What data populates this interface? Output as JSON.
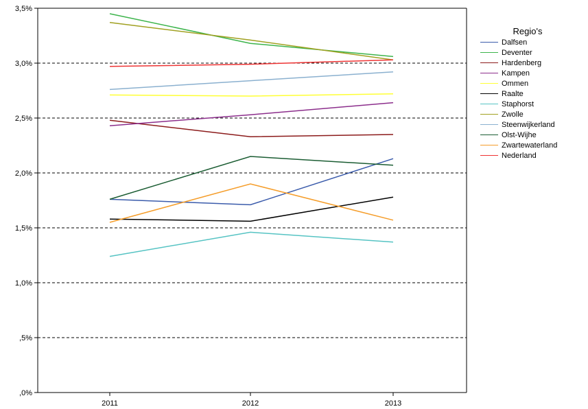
{
  "chart_data": {
    "type": "line",
    "title": "",
    "xlabel": "",
    "ylabel": "",
    "categories": [
      "2011",
      "2012",
      "2013"
    ],
    "ylim": [
      0,
      3.5
    ],
    "yticks": [
      0,
      0.5,
      1.0,
      1.5,
      2.0,
      2.5,
      3.0,
      3.5
    ],
    "ytick_labels": [
      ",0%",
      ",5%",
      "1,0%",
      "1,5%",
      "2,0%",
      "2,5%",
      "3,0%",
      "3,5%"
    ],
    "grid": "dashed horizontal",
    "legend": {
      "title": "Regio's",
      "position": "right"
    },
    "series": [
      {
        "name": "Dalfsen",
        "color": "#3a5bab",
        "values": [
          1.76,
          1.71,
          2.13
        ]
      },
      {
        "name": "Deventer",
        "color": "#3cb44b",
        "values": [
          3.45,
          3.18,
          3.06
        ]
      },
      {
        "name": "Hardenberg",
        "color": "#8b1a1a",
        "values": [
          2.48,
          2.33,
          2.35
        ]
      },
      {
        "name": "Kampen",
        "color": "#8b2d8b",
        "values": [
          2.43,
          2.53,
          2.64
        ]
      },
      {
        "name": "Ommen",
        "color": "#ffff33",
        "values": [
          2.71,
          2.7,
          2.72
        ]
      },
      {
        "name": "Raalte",
        "color": "#000000",
        "values": [
          1.58,
          1.56,
          1.78
        ]
      },
      {
        "name": "Staphorst",
        "color": "#55c3c3",
        "values": [
          1.24,
          1.46,
          1.37
        ]
      },
      {
        "name": "Zwolle",
        "color": "#a0a020",
        "values": [
          3.37,
          3.21,
          3.03
        ]
      },
      {
        "name": "Steenwijkerland",
        "color": "#8ab0cf",
        "values": [
          2.76,
          2.84,
          2.92
        ]
      },
      {
        "name": "Olst-Wijhe",
        "color": "#1a5c32",
        "values": [
          1.76,
          2.15,
          2.07
        ]
      },
      {
        "name": "Zwartewaterland",
        "color": "#f59d2a",
        "values": [
          1.55,
          1.9,
          1.57
        ]
      },
      {
        "name": "Nederland",
        "color": "#ee3333",
        "values": [
          2.97,
          2.99,
          3.03
        ]
      }
    ]
  }
}
